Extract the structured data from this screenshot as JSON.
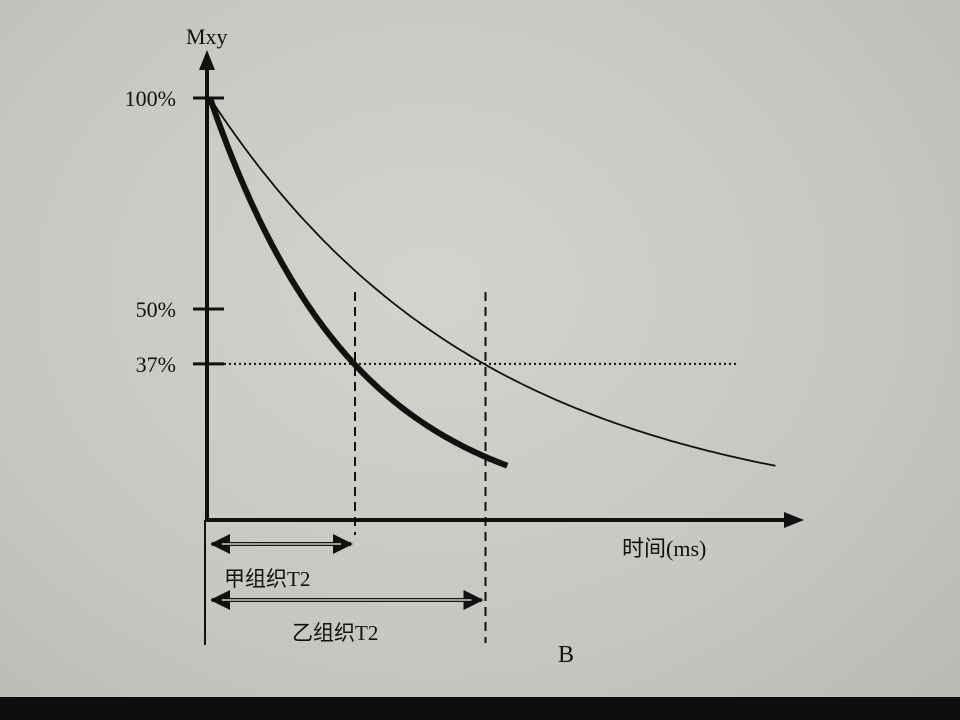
{
  "chart_data": {
    "type": "line",
    "title": "",
    "ylabel": "Mxy",
    "xlabel": "时间(ms)",
    "y_ticks": [
      {
        "label": "100%",
        "value": 100
      },
      {
        "label": "50%",
        "value": 50
      },
      {
        "label": "37%",
        "value": 37
      }
    ],
    "series": [
      {
        "label": "甲组织",
        "style": "thick",
        "T2": 1.0,
        "x_end": 2.05
      },
      {
        "label": "乙组织",
        "style": "thin",
        "T2": 1.9,
        "x_end": 3.9
      }
    ],
    "annotations": [
      {
        "label": "甲组织T2",
        "x_start": 0,
        "x_end": 1.0
      },
      {
        "label": "乙组织T2",
        "x_start": 0,
        "x_end": 1.9
      }
    ],
    "xlim": [
      0,
      4
    ],
    "ylim": [
      0,
      100
    ],
    "figure_label": "B",
    "colors": {
      "ink": "#111111",
      "background": "#cfcec8"
    }
  }
}
